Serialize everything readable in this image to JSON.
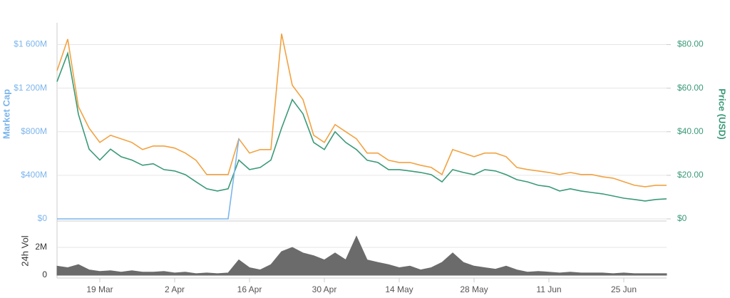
{
  "chart_data": [
    {
      "type": "line",
      "categories": [
        null,
        null,
        null,
        null,
        "19 Mar",
        null,
        null,
        null,
        null,
        null,
        null,
        "2 Apr",
        null,
        null,
        null,
        null,
        null,
        null,
        "16 Apr",
        null,
        null,
        null,
        null,
        null,
        null,
        "30 Apr",
        null,
        null,
        null,
        null,
        null,
        null,
        "14 May",
        null,
        null,
        null,
        null,
        null,
        null,
        "28 May",
        null,
        null,
        null,
        null,
        null,
        null,
        "11 Jun",
        null,
        null,
        null,
        null,
        null,
        null,
        "25 Jun",
        null,
        null,
        null,
        null
      ],
      "series": [
        {
          "name": "Price (USD)",
          "color": "#3a9a77",
          "axis": "y2",
          "values": [
            63,
            76,
            48,
            32,
            27,
            32,
            28.5,
            27,
            24.6,
            25.3,
            22.6,
            22,
            20.3,
            17,
            13.8,
            12.8,
            13.8,
            27,
            22.6,
            23.6,
            27,
            41.7,
            54.8,
            48.2,
            35.1,
            31.8,
            40,
            35.1,
            31.8,
            26.9,
            25.9,
            22.6,
            22.6,
            22,
            21.3,
            20.3,
            17,
            22.6,
            21.3,
            20.3,
            22.6,
            22,
            20.3,
            18,
            17,
            15.4,
            14.8,
            12.8,
            13.8,
            12.8,
            12.1,
            11.5,
            10.5,
            9.5,
            8.9,
            8.2,
            8.9,
            9.2
          ]
        },
        {
          "name": "Market Cap",
          "color": "#f2a241",
          "axis": "y",
          "values": [
            1360,
            1650,
            1030,
            833,
            702,
            768,
            735,
            702,
            636,
            669,
            669,
            650,
            604,
            538,
            407,
            407,
            407,
            735,
            604,
            636,
            636,
            1700,
            1227,
            1096,
            768,
            702,
            866,
            800,
            735,
            604,
            604,
            538,
            518,
            518,
            492,
            472,
            407,
            636,
            604,
            571,
            604,
            604,
            571,
            472,
            453,
            440,
            426,
            407,
            426,
            407,
            407,
            387,
            374,
            341,
            308,
            295,
            308,
            308
          ]
        },
        {
          "name": null,
          "color": "#7cb5ec",
          "axis": "y",
          "values": [
            0,
            0,
            0,
            0,
            0,
            0,
            0,
            0,
            0,
            0,
            0,
            0,
            0,
            0,
            0,
            0,
            0,
            735,
            null,
            null,
            null,
            null,
            null,
            null,
            null,
            null,
            null,
            null,
            null,
            null,
            null,
            null,
            null,
            null,
            null,
            null,
            null,
            null,
            null,
            null,
            null,
            null,
            null,
            null,
            null,
            null,
            null,
            null,
            null,
            null,
            null,
            null,
            null,
            null,
            null,
            null,
            null,
            null
          ]
        }
      ],
      "ylabel": "Market Cap",
      "y2label": "Price (USD)",
      "ylim": [
        0,
        1800
      ],
      "yticks": [
        {
          "value": 0,
          "label": "$0"
        },
        {
          "value": 400,
          "label": "$400M"
        },
        {
          "value": 800,
          "label": "$800M"
        },
        {
          "value": 1200,
          "label": "$1 200M"
        },
        {
          "value": 1600,
          "label": "$1 600M"
        }
      ],
      "y2lim": [
        0,
        90
      ],
      "y2ticks": [
        {
          "value": 0,
          "label": "$0"
        },
        {
          "value": 20,
          "label": "$20.00"
        },
        {
          "value": 40,
          "label": "$40.00"
        },
        {
          "value": 60,
          "label": "$60.00"
        },
        {
          "value": 80,
          "label": "$80.00"
        }
      ],
      "grid": true
    },
    {
      "type": "area",
      "ylabel": "24h Vol",
      "color": "#6b6b6b",
      "values": [
        0.65,
        0.54,
        0.76,
        0.38,
        0.27,
        0.32,
        0.22,
        0.32,
        0.22,
        0.22,
        0.27,
        0.16,
        0.22,
        0.11,
        0.16,
        0.11,
        0.16,
        1.1,
        0.54,
        0.38,
        0.76,
        1.7,
        2.0,
        1.6,
        1.4,
        1.1,
        1.6,
        1.1,
        2.8,
        1.1,
        0.92,
        0.76,
        0.54,
        0.65,
        0.38,
        0.54,
        0.92,
        1.6,
        0.92,
        0.65,
        0.54,
        0.43,
        0.65,
        0.38,
        0.22,
        0.27,
        0.22,
        0.16,
        0.22,
        0.16,
        0.16,
        0.16,
        0.11,
        0.16,
        0.11,
        0.11,
        0.11,
        0.11
      ],
      "ylim": [
        0,
        3.8
      ],
      "yticks": [
        0,
        {
          "value": 2,
          "label": "2M"
        }
      ],
      "grid": true
    }
  ]
}
